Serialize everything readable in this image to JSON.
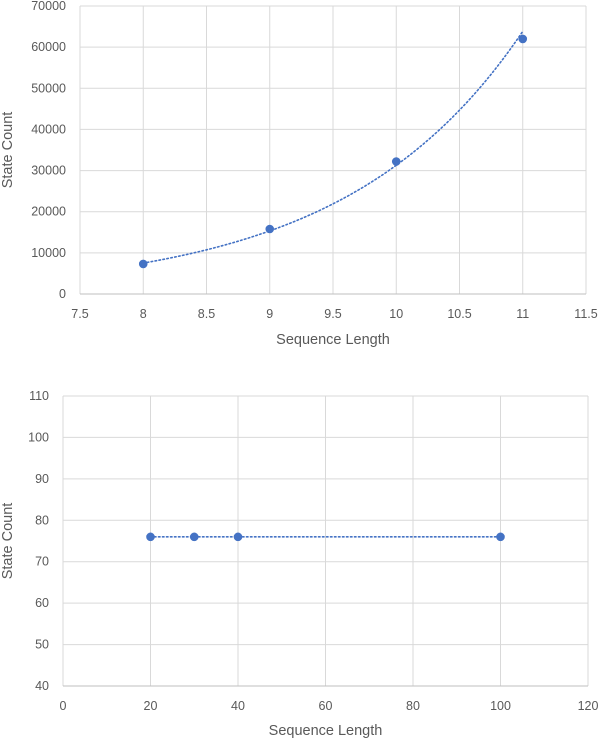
{
  "chart_data": [
    {
      "type": "scatter",
      "title": "",
      "xlabel": "Sequence Length",
      "ylabel": "State Count",
      "xlim": [
        7.5,
        11.5
      ],
      "ylim": [
        0,
        70000
      ],
      "xticks": [
        "7.5",
        "8",
        "8.5",
        "9",
        "9.5",
        "10",
        "10.5",
        "11",
        "11.5"
      ],
      "yticks": [
        "0",
        "10000",
        "20000",
        "30000",
        "40000",
        "50000",
        "60000",
        "70000"
      ],
      "grid": true,
      "trendline": "exponential",
      "series": [
        {
          "x": [
            8,
            9,
            10,
            11
          ],
          "y": [
            7300,
            15800,
            32200,
            62000
          ]
        }
      ],
      "colors": {
        "marker": "#4472c4",
        "trendline": "#4472c4"
      }
    },
    {
      "type": "scatter",
      "title": "",
      "xlabel": "Sequence Length",
      "ylabel": "State Count",
      "xlim": [
        0,
        120
      ],
      "ylim": [
        40,
        110
      ],
      "xticks": [
        "0",
        "20",
        "40",
        "60",
        "80",
        "100",
        "120"
      ],
      "yticks": [
        "40",
        "50",
        "60",
        "70",
        "80",
        "90",
        "100",
        "110"
      ],
      "grid": true,
      "trendline": "linear",
      "series": [
        {
          "x": [
            20,
            30,
            40,
            100
          ],
          "y": [
            76,
            76,
            76,
            76
          ]
        }
      ],
      "colors": {
        "marker": "#4472c4",
        "trendline": "#4472c4"
      }
    }
  ]
}
